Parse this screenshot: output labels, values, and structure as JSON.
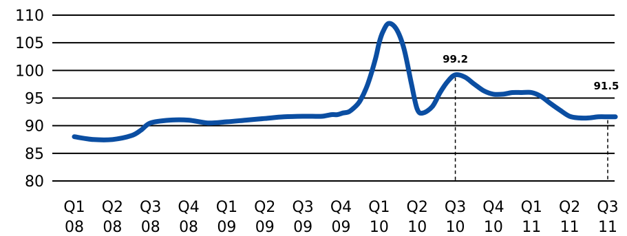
{
  "chart_data": {
    "type": "line",
    "title": "",
    "xlabel": "",
    "ylabel": "",
    "ylim": [
      80,
      110
    ],
    "yticks": [
      80,
      85,
      90,
      95,
      100,
      105,
      110
    ],
    "grid": "horizontal",
    "legend": "none",
    "categories": [
      [
        "Q1",
        "08"
      ],
      [
        "Q2",
        "08"
      ],
      [
        "Q3",
        "08"
      ],
      [
        "Q4",
        "08"
      ],
      [
        "Q1",
        "09"
      ],
      [
        "Q2",
        "09"
      ],
      [
        "Q3",
        "09"
      ],
      [
        "Q4",
        "09"
      ],
      [
        "Q1",
        "10"
      ],
      [
        "Q2",
        "10"
      ],
      [
        "Q3",
        "10"
      ],
      [
        "Q4",
        "10"
      ],
      [
        "Q1",
        "11"
      ],
      [
        "Q2",
        "11"
      ],
      [
        "Q3",
        "11"
      ]
    ],
    "series": [
      {
        "color": "#0b4ea2",
        "x": [
          0,
          0.5,
          1,
          1.5,
          1.75,
          2,
          2.5,
          3,
          3.5,
          4,
          4.5,
          5,
          5.5,
          6,
          6.25,
          6.5,
          6.75,
          6.9,
          7.05,
          7.2,
          7.35,
          7.5,
          7.7,
          7.9,
          8,
          8.1,
          8.25,
          8.45,
          8.65,
          8.85,
          9,
          9.15,
          9.4,
          9.6,
          9.8,
          10,
          10.25,
          10.5,
          10.75,
          11,
          11.25,
          11.5,
          11.75,
          12,
          12.25,
          12.5,
          12.75,
          13,
          13.25,
          13.5,
          13.75,
          14,
          14.2
        ],
        "y": [
          88,
          87.5,
          87.5,
          88.2,
          89.2,
          90.5,
          91,
          91,
          90.5,
          90.7,
          91,
          91.3,
          91.6,
          91.7,
          91.7,
          91.7,
          92,
          92,
          92.3,
          92.5,
          93.3,
          94.5,
          97.5,
          102,
          105,
          107,
          108.5,
          107.5,
          104,
          97.5,
          93,
          92.3,
          93.5,
          96,
          98,
          99.2,
          98.8,
          97.5,
          96.3,
          95.7,
          95.7,
          96,
          96,
          96,
          95.3,
          94,
          92.8,
          91.7,
          91.4,
          91.4,
          91.6,
          91.6,
          91.6
        ]
      }
    ],
    "annotations": [
      {
        "label": "99.2",
        "x": 10,
        "y": 99.2
      },
      {
        "label": "91.5",
        "x": 14,
        "y": 91.5
      }
    ]
  }
}
